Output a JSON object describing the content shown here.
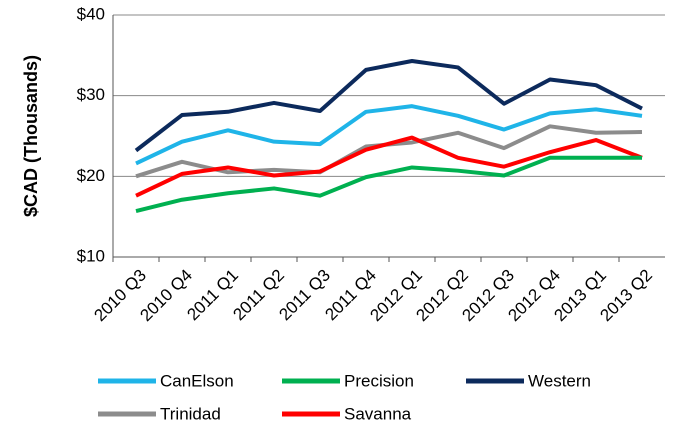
{
  "chart_data": {
    "type": "line",
    "y_label": "$CAD (Thousands)",
    "categories": [
      "2010 Q3",
      "2010 Q4",
      "2011 Q1",
      "2011 Q2",
      "2011 Q3",
      "2011 Q4",
      "2012 Q1",
      "2012 Q2",
      "2012 Q3",
      "2012 Q4",
      "2013 Q1",
      "2013 Q2"
    ],
    "series": [
      {
        "name": "CanElson",
        "color": "#1fb4e8",
        "values": [
          21.6,
          24.3,
          25.7,
          24.3,
          24.0,
          28.0,
          28.7,
          27.5,
          25.8,
          27.8,
          28.3,
          27.5
        ]
      },
      {
        "name": "Precision",
        "color": "#00b050",
        "values": [
          15.7,
          17.1,
          17.9,
          18.5,
          17.6,
          19.9,
          21.1,
          20.7,
          20.1,
          22.3,
          22.3,
          22.3
        ]
      },
      {
        "name": "Western",
        "color": "#0c2a5c",
        "values": [
          23.2,
          27.6,
          28.0,
          29.1,
          28.1,
          33.2,
          34.3,
          33.5,
          29.0,
          32.0,
          31.3,
          28.4
        ]
      },
      {
        "name": "Trinidad",
        "color": "#8c8c8c",
        "values": [
          20.0,
          21.8,
          20.5,
          20.8,
          20.5,
          23.7,
          24.2,
          25.4,
          23.5,
          26.2,
          25.4,
          25.5
        ]
      },
      {
        "name": "Savanna",
        "color": "#ff0000",
        "values": [
          17.6,
          20.3,
          21.1,
          20.1,
          20.6,
          23.3,
          24.8,
          22.3,
          21.2,
          23.0,
          24.5,
          22.3
        ]
      }
    ],
    "ylim": [
      10,
      40
    ],
    "yticks": [
      {
        "value": 10,
        "label": "$10"
      },
      {
        "value": 20,
        "label": "$20"
      },
      {
        "value": 30,
        "label": "$30"
      },
      {
        "value": 40,
        "label": "$40"
      }
    ],
    "grid": true,
    "legend": "bottom"
  }
}
